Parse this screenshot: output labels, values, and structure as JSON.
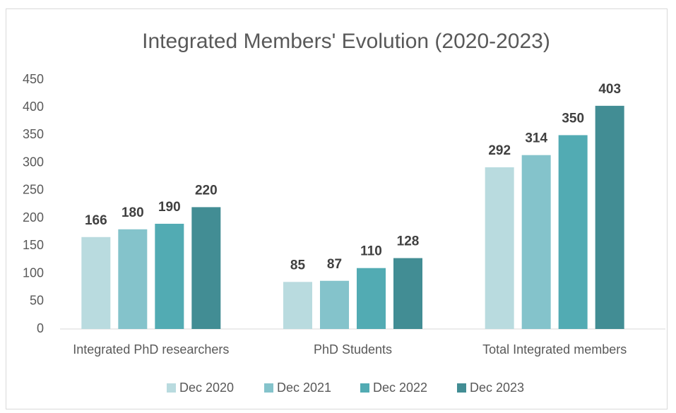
{
  "chart_data": {
    "type": "bar",
    "title": "Integrated Members' Evolution  (2020-2023)",
    "categories": [
      "Integrated PhD researchers",
      "PhD Students",
      "Total Integrated members"
    ],
    "series": [
      {
        "name": "Dec 2020",
        "color": "#b9dbdf",
        "values": [
          166,
          85,
          292
        ]
      },
      {
        "name": "Dec 2021",
        "color": "#84c3cb",
        "values": [
          180,
          87,
          314
        ]
      },
      {
        "name": "Dec 2022",
        "color": "#52abb3",
        "values": [
          190,
          110,
          350
        ]
      },
      {
        "name": "Dec 2023",
        "color": "#428d94",
        "values": [
          220,
          128,
          403
        ]
      }
    ],
    "ylim": [
      0,
      450
    ],
    "yticks": [
      0,
      50,
      100,
      150,
      200,
      250,
      300,
      350,
      400,
      450
    ],
    "grid": false,
    "legend": "bottom"
  }
}
